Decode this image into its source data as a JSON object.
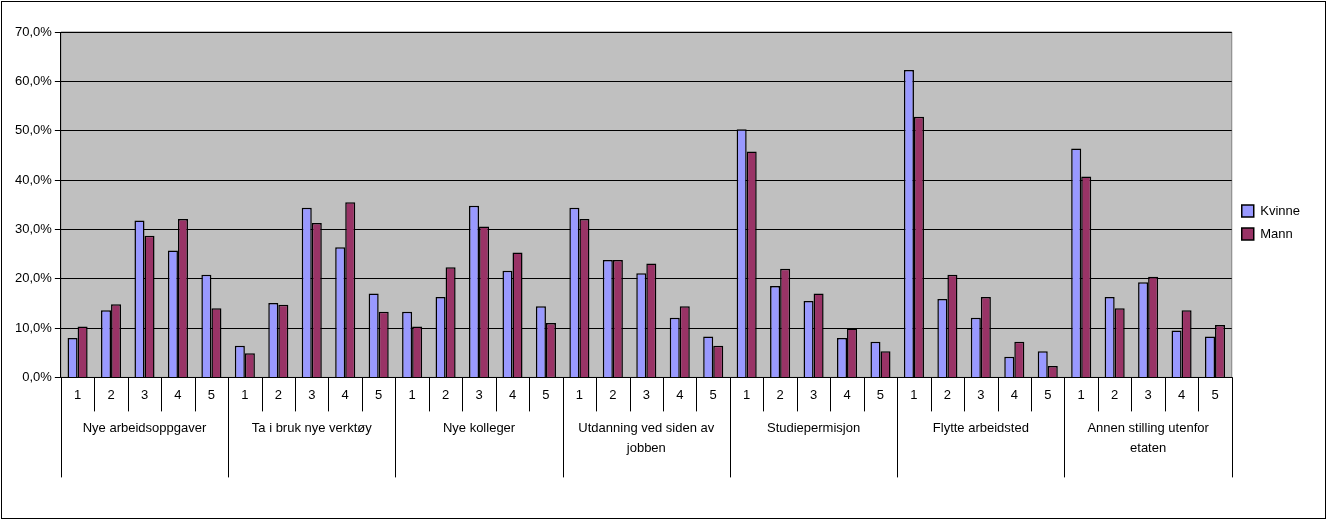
{
  "chart_data": {
    "type": "bar",
    "categories": [
      "1",
      "2",
      "3",
      "4",
      "5",
      "1",
      "2",
      "3",
      "4",
      "5",
      "1",
      "2",
      "3",
      "4",
      "5",
      "1",
      "2",
      "3",
      "4",
      "5",
      "1",
      "2",
      "3",
      "4",
      "5",
      "1",
      "2",
      "3",
      "4",
      "5",
      "1",
      "2",
      "3",
      "4",
      "5"
    ],
    "series": [
      {
        "name": "Kvinne",
        "color": "#9999ff",
        "values": [
          8,
          13.6,
          31.8,
          25.7,
          20.8,
          6.4,
          15.1,
          34.4,
          26.4,
          17.0,
          13.3,
          16.3,
          34.8,
          21.6,
          14.4,
          34.4,
          23.8,
          21.1,
          12.1,
          8.3,
          50.3,
          18.5,
          15.5,
          8.0,
          7.2,
          62.3,
          15.9,
          12.1,
          4.2,
          5.3,
          46.4,
          16.3,
          19.3,
          9.5,
          8.3
        ]
      },
      {
        "name": "Mann",
        "color": "#993366",
        "values": [
          10.3,
          14.8,
          28.7,
          32.1,
          14.0,
          4.9,
          14.7,
          31.3,
          35.5,
          13.3,
          10.3,
          22.3,
          30.6,
          25.3,
          11.0,
          32.1,
          23.8,
          23.1,
          14.4,
          6.4,
          45.8,
          22.0,
          17.0,
          9.9,
          5.3,
          52.8,
          20.8,
          16.3,
          7.2,
          2.3,
          40.7,
          14.0,
          20.4,
          13.6,
          10.6
        ]
      }
    ],
    "annotations": [
      "Nye arbeidsoppgaver",
      "Ta i bruk nye verktøy",
      "Nye kolleger",
      "Utdanning ved siden av jobben",
      "Studiepermisjon",
      "Flytte arbeidsted",
      "Annen stilling utenfor etaten"
    ],
    "ylim": [
      0,
      70
    ],
    "yticks": [
      {
        "value": 0,
        "label": "0,0%"
      },
      {
        "value": 10,
        "label": "10,0%"
      },
      {
        "value": 20,
        "label": "20,0%"
      },
      {
        "value": 30,
        "label": "30,0%"
      },
      {
        "value": 40,
        "label": "40,0%"
      },
      {
        "value": 50,
        "label": "50,0%"
      },
      {
        "value": 60,
        "label": "60,0%"
      },
      {
        "value": 70,
        "label": "70,0%"
      }
    ],
    "grid": "y",
    "legend": "right"
  }
}
